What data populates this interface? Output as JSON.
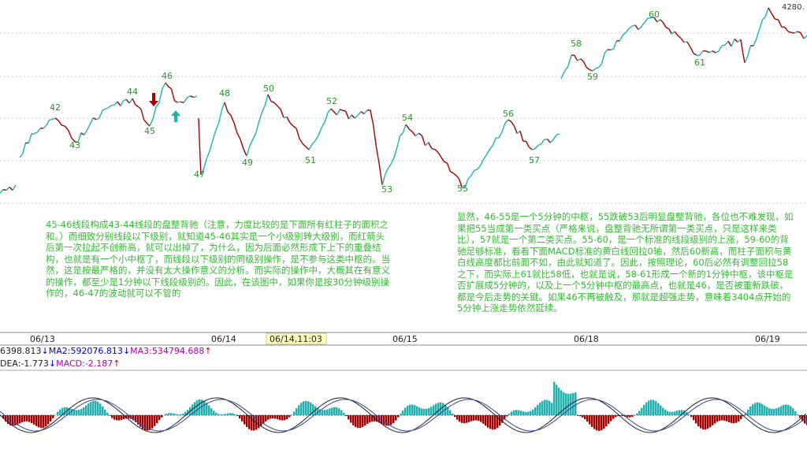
{
  "price_axis_label": "4280.",
  "wave_labels": [
    "42",
    "43",
    "44",
    "45",
    "46",
    "47",
    "48",
    "49",
    "50",
    "51",
    "52",
    "53",
    "54",
    "55",
    "56",
    "57",
    "58",
    "59",
    "60",
    "61"
  ],
  "annotations": {
    "left": "45-46线段构成43-44线段的盘整背驰（注意，力度比较的是下面所有红柱子的面积之和。）而细致分别线段以下级别，就知道45-46其实是一个小级别转大级别，而红箭头后第一次拉起不创新高，就可以出掉了，为什么，因为后面必然形成下上下的重叠结构，也就是有一个小中枢了，而线段以下级别的同级别操作，是不参与这类中枢的。当然，这是按最严格的，并没有太大操作意义的分析。而实际的操作中，大概其在有意义的操作，都至少是1分钟以下线段级别的。因此，在该图中，如果你是按30分钟级别操作的，46-47的波动就可以不管的",
    "right": "显然，46-55是一个5分钟的中枢，55跌破53后明显盘整背驰，各位也不难发现，如果把55当成第一类买点（严格来说，盘整背驰无所谓第一类买点，只是这样来类比），57就是一个第二类买点。55-60，是一个标准的线段级别的上涨，59-60的背驰足够标准，看看下面MACD标准的黄白线回拉0轴，然后60新高，而柱子面积与黄白线高度都比前面不如，由此就知道了。因此，按照理论，60后必然有调整回拉58之下，而实际上61就比58低，也就是说，58-61形成一个新的1分钟中枢，该中枢是否扩展成5分钟的，以及上一个5分钟中枢的最高点，也就是46，是否被重新跌破，都是今后走势的关键。如果46不再被触及，那就是超强走势，意味着3404点开始的5分钟上涨走势依然延续。"
  },
  "dates": [
    "06/13",
    "06/14",
    "06/14,11:03",
    "06/15",
    "06/18",
    "06/19"
  ],
  "indicator_row1": [
    "6398.813",
    "↓",
    "MA2:592076.813",
    "↓",
    "MA3:534794.688",
    "↑"
  ],
  "indicator_row2": [
    "DEA:-1.773",
    "↓",
    "MACD:-2.187",
    "↑"
  ]
}
